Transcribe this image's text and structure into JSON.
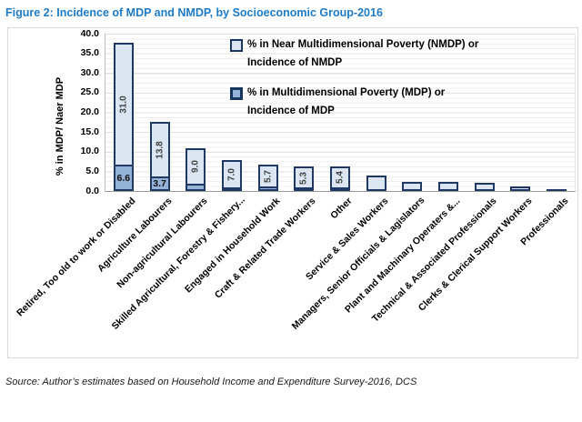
{
  "title": "Figure 2: Incidence of MDP and NMDP, by Socioeconomic Group-2016",
  "source": "Source: Author’s estimates based on Household Income and Expenditure Survey-2016, DCS",
  "colors": {
    "title_blue": "#1e7bc4",
    "nmdp_fill": "#dce6f2",
    "mdp_fill": "#95b3d7",
    "bar_border": "#1f3864"
  },
  "legend": {
    "nmdp": {
      "line1": "% in Near Multidimensional Poverty (NMDP) or",
      "line2": "Incidence of NMDP"
    },
    "mdp": {
      "line1": "% in Multidimensional Poverty (MDP) or",
      "line2": "Incidence of MDP"
    }
  },
  "chart_data": {
    "type": "bar",
    "stacked": true,
    "title": "Figure 2: Incidence of MDP and NMDP, by Socioeconomic Group-2016",
    "xlabel": "",
    "ylabel": "% in MDP/ Naer MDP",
    "ylim": [
      0,
      40
    ],
    "ytick_step": 5,
    "yticks": [
      "40.0",
      "35.0",
      "30.0",
      "25.0",
      "20.0",
      "15.0",
      "10.0",
      "5.0",
      "0.0"
    ],
    "grid": "minor-horizontal",
    "legend_position": "inside-top-right",
    "categories": [
      "Retired, Too old to work or Disabled",
      "Agriculture Labourers",
      "Non-agricultural Labourers",
      "Skilled Agricultural, Forestry & Fishery...",
      "Engaged in Household Work",
      "Craft & Related Trade Workers",
      "Other",
      "Service & Sales Workers",
      "Managers, Senior Officials & Lagislators",
      "Plant and Machinary Operaters &...",
      "Technical & Associated Professionals",
      "Clerks & Clerical Support Workers",
      "Professionals"
    ],
    "series": [
      {
        "name": "% in Multidimensional Poverty (MDP) or Incidence of MDP",
        "values": [
          6.6,
          3.7,
          1.9,
          0.7,
          1.1,
          0.9,
          0.6,
          0,
          0,
          0,
          0,
          0,
          0
        ],
        "labels": [
          "6.6",
          "3.7",
          "",
          "",
          "",
          "",
          "",
          "",
          "",
          "",
          "",
          "",
          ""
        ]
      },
      {
        "name": "% in Near Multidimensional Poverty (NMDP) or Incidence of NMDP",
        "values": [
          31.0,
          13.8,
          9.0,
          7.0,
          5.7,
          5.3,
          5.4,
          4.0,
          2.3,
          2.4,
          2.1,
          1.2,
          0.2
        ],
        "labels": [
          "31.0",
          "13.8",
          "9.0",
          "7.0",
          "5.7",
          "5.3",
          "5.4",
          "",
          "",
          "",
          "",
          "",
          ""
        ]
      }
    ]
  }
}
